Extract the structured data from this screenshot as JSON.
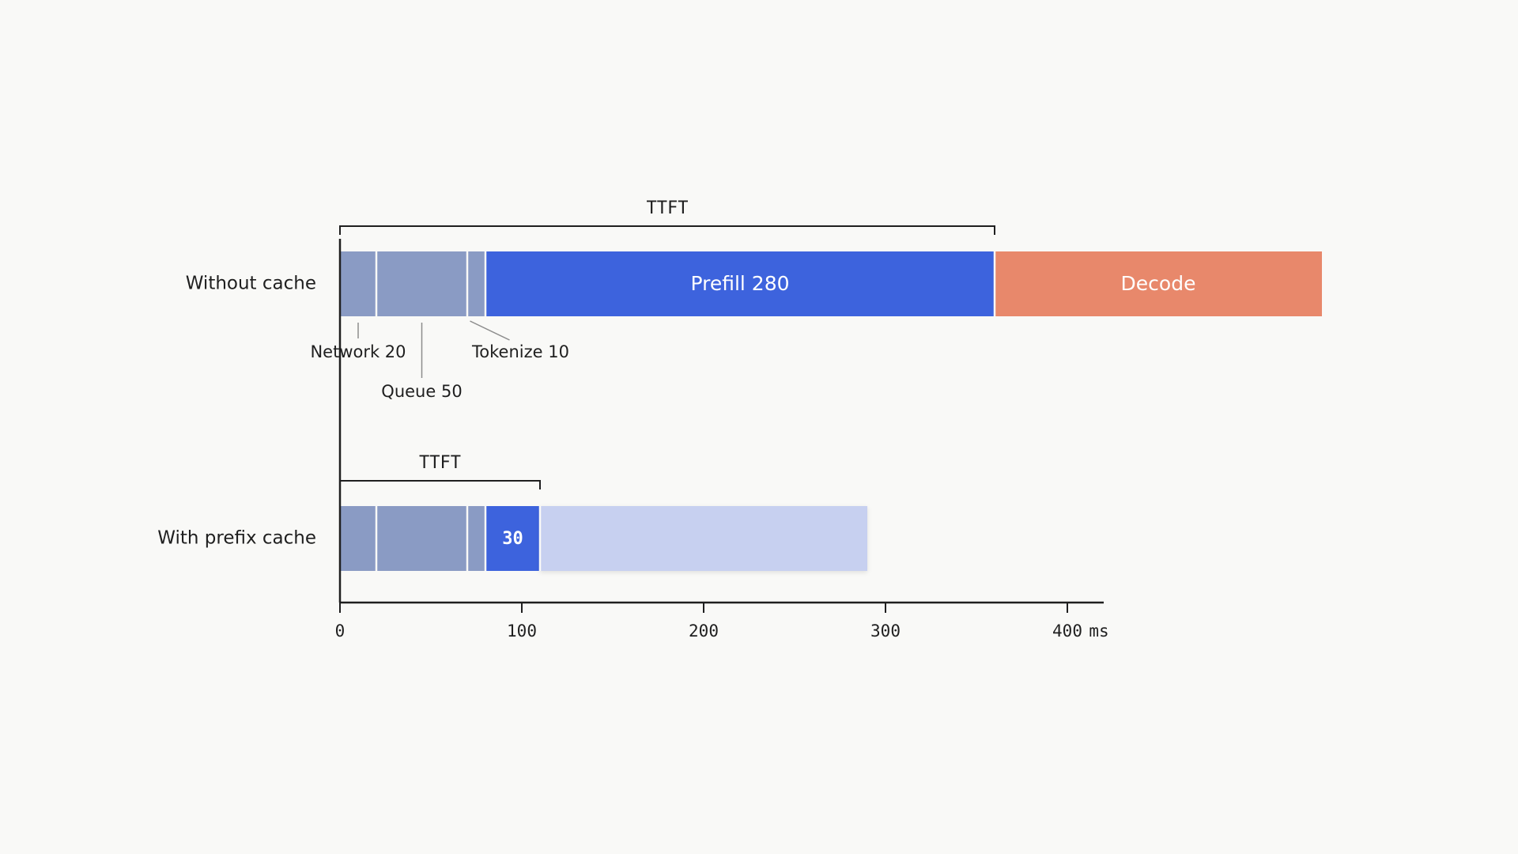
{
  "chart_data": {
    "type": "bar",
    "orientation": "horizontal-stacked",
    "axis": {
      "ticks": [
        0,
        100,
        200,
        300,
        400
      ],
      "tick_labels": [
        "0",
        "100",
        "200",
        "300",
        "400"
      ],
      "unit": "ms",
      "xlim": [
        0,
        420
      ]
    },
    "rows": [
      {
        "name": "Without cache",
        "segments": [
          {
            "name": "Network",
            "start": 0,
            "value": 20,
            "color": "#8a9bc4"
          },
          {
            "name": "Queue",
            "start": 20,
            "value": 50,
            "color": "#8a9bc4"
          },
          {
            "name": "Tokenize",
            "start": 70,
            "value": 10,
            "color": "#8a9bc4"
          },
          {
            "name": "Prefill",
            "start": 80,
            "value": 280,
            "color": "#3d63dd",
            "label": "Prefill 280"
          },
          {
            "name": "Decode",
            "start": 360,
            "value": 180,
            "color": "#e8886b",
            "label": "Decode"
          }
        ],
        "ttft": {
          "label": "TTFT",
          "start": 0,
          "end": 360
        },
        "annotations": [
          {
            "label": "Network 20",
            "segment": "Network"
          },
          {
            "label": "Queue 50",
            "segment": "Queue"
          },
          {
            "label": "Tokenize 10",
            "segment": "Tokenize"
          }
        ]
      },
      {
        "name": "With prefix cache",
        "segments": [
          {
            "name": "Network",
            "start": 0,
            "value": 20,
            "color": "#8a9bc4"
          },
          {
            "name": "Queue",
            "start": 20,
            "value": 50,
            "color": "#8a9bc4"
          },
          {
            "name": "Tokenize",
            "start": 70,
            "value": 10,
            "color": "#8a9bc4"
          },
          {
            "name": "Prefill",
            "start": 80,
            "value": 30,
            "color": "#3d63dd",
            "label": "30"
          },
          {
            "name": "Decode",
            "start": 110,
            "value": 180,
            "color": "#c7d0f0"
          }
        ],
        "ttft": {
          "label": "TTFT",
          "start": 0,
          "end": 110
        }
      }
    ]
  },
  "colors": {
    "background": "#f9f9f7",
    "axis": "#1f1f1f",
    "separator": "#f9f9f7"
  }
}
